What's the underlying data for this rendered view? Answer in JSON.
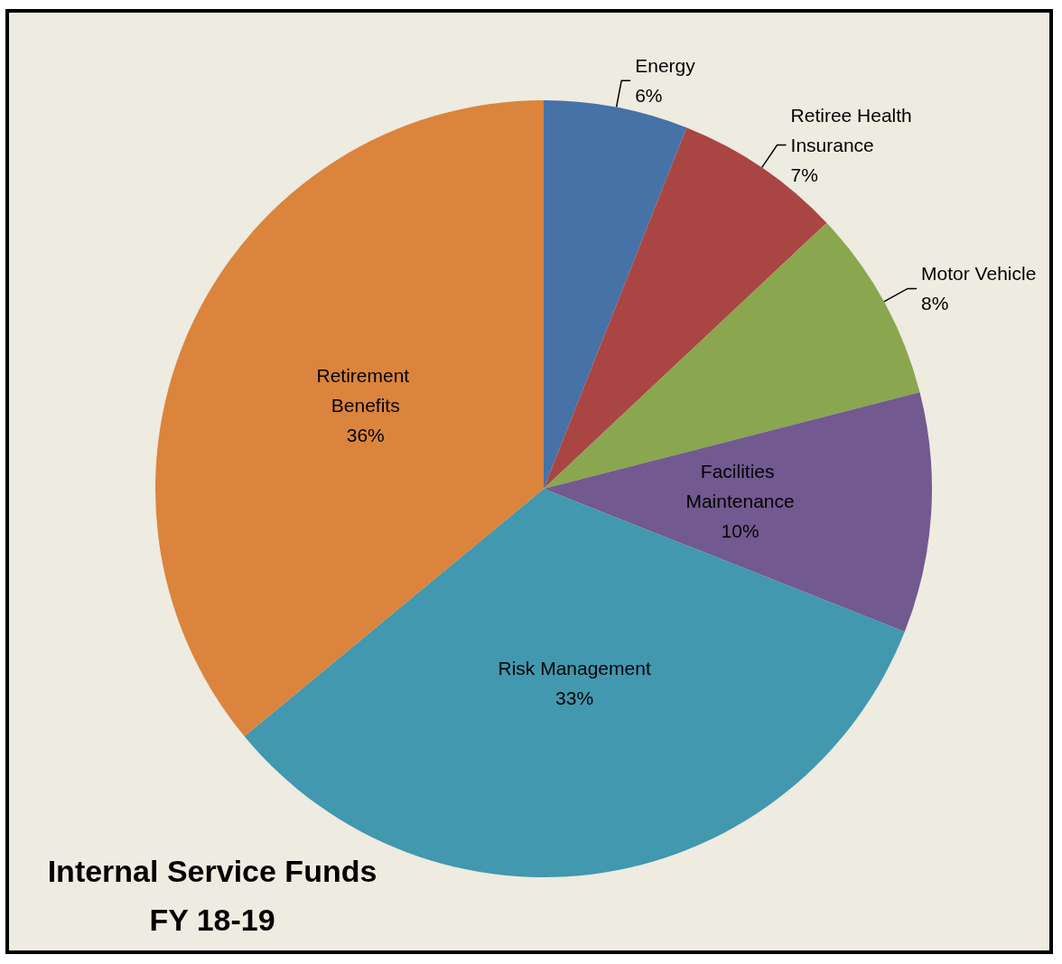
{
  "chart_data": {
    "type": "pie",
    "title": "Internal Service Funds",
    "subtitle": "FY 18-19",
    "categories": [
      "Energy",
      "Retiree Health Insurance",
      "Motor Vehicle",
      "Facilities Maintenance",
      "Risk Management",
      "Retirement Benefits"
    ],
    "values": [
      6,
      7,
      8,
      10,
      33,
      36
    ],
    "value_labels": [
      "6%",
      "7%",
      "8%",
      "10%",
      "33%",
      "36%"
    ],
    "colors": [
      "#4672a8",
      "#a94643",
      "#8aa64f",
      "#725990",
      "#4198af",
      "#db843d"
    ]
  }
}
